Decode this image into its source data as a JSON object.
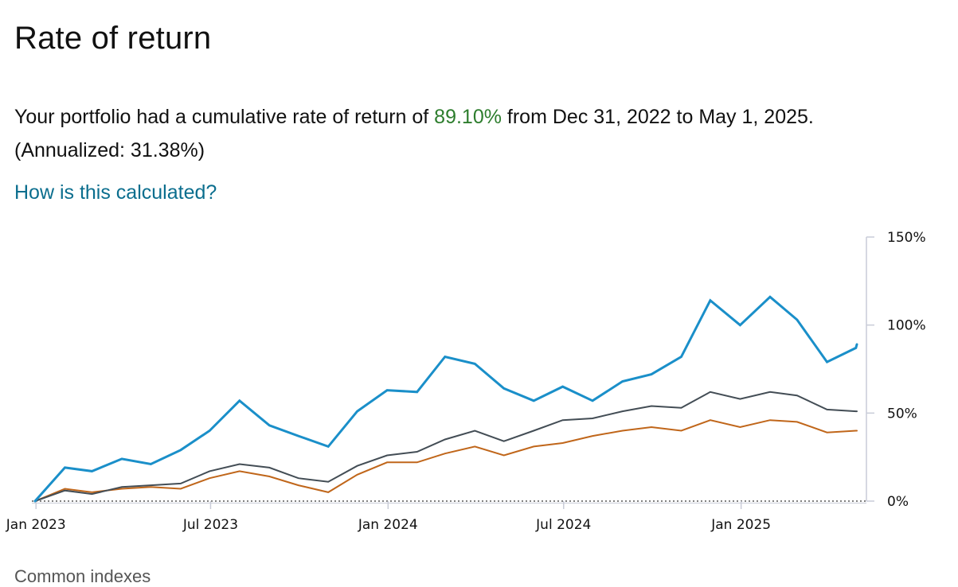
{
  "page": {
    "title": "Rate of return",
    "summary_prefix": "Your portfolio had a cumulative rate of return of ",
    "summary_value": "89.10%",
    "summary_suffix": " from Dec 31, 2022 to May 1, 2025.",
    "annualized": "(Annualized: 31.38%)",
    "help_link": "How is this calculated?",
    "next_section": "Common indexes"
  },
  "colors": {
    "accent_positive": "#2d7d2d",
    "link": "#0b6e8e"
  },
  "chart_data": {
    "type": "line",
    "title": "",
    "xlabel": "",
    "ylabel": "",
    "ylim": [
      0,
      150
    ],
    "y_ticks": [
      "150%",
      "100%",
      "50%",
      "0%"
    ],
    "y_tick_values": [
      150,
      100,
      50,
      0
    ],
    "x_ticks": [
      "Jan 2023",
      "Jul 2023",
      "Jan 2024",
      "Jul 2024",
      "Jan 2025"
    ],
    "x_tick_dates": [
      "2023-01-01",
      "2023-07-01",
      "2024-01-01",
      "2024-07-01",
      "2025-01-01"
    ],
    "x_range": [
      "2022-12-31",
      "2025-05-01"
    ],
    "grid": false,
    "baseline_dotted": true,
    "x": [
      "2022-12-31",
      "2023-01-31",
      "2023-02-28",
      "2023-03-31",
      "2023-04-30",
      "2023-05-31",
      "2023-06-30",
      "2023-07-31",
      "2023-08-31",
      "2023-09-30",
      "2023-10-31",
      "2023-11-30",
      "2023-12-31",
      "2024-01-31",
      "2024-02-29",
      "2024-03-31",
      "2024-04-30",
      "2024-05-31",
      "2024-06-30",
      "2024-07-31",
      "2024-08-31",
      "2024-09-30",
      "2024-10-31",
      "2024-11-30",
      "2024-12-31",
      "2025-01-31",
      "2025-02-28",
      "2025-03-31",
      "2025-04-30",
      "2025-05-01"
    ],
    "series": [
      {
        "color": "#1a8fc9",
        "values": [
          0,
          19,
          17,
          24,
          21,
          29,
          40,
          57,
          43,
          37,
          31,
          51,
          63,
          62,
          82,
          78,
          64,
          57,
          65,
          57,
          68,
          72,
          82,
          114,
          100,
          116,
          103,
          79,
          87,
          89
        ]
      },
      {
        "color": "#434d55",
        "values": [
          0,
          6,
          4,
          8,
          9,
          10,
          17,
          21,
          19,
          13,
          11,
          20,
          26,
          28,
          35,
          40,
          34,
          40,
          46,
          47,
          51,
          54,
          53,
          62,
          58,
          62,
          60,
          52,
          51,
          51
        ]
      },
      {
        "color": "#c0661a",
        "values": [
          0,
          7,
          5,
          7,
          8,
          7,
          13,
          17,
          14,
          9,
          5,
          15,
          22,
          22,
          27,
          31,
          26,
          31,
          33,
          37,
          40,
          42,
          40,
          46,
          42,
          46,
          45,
          39,
          40,
          40
        ]
      }
    ]
  }
}
